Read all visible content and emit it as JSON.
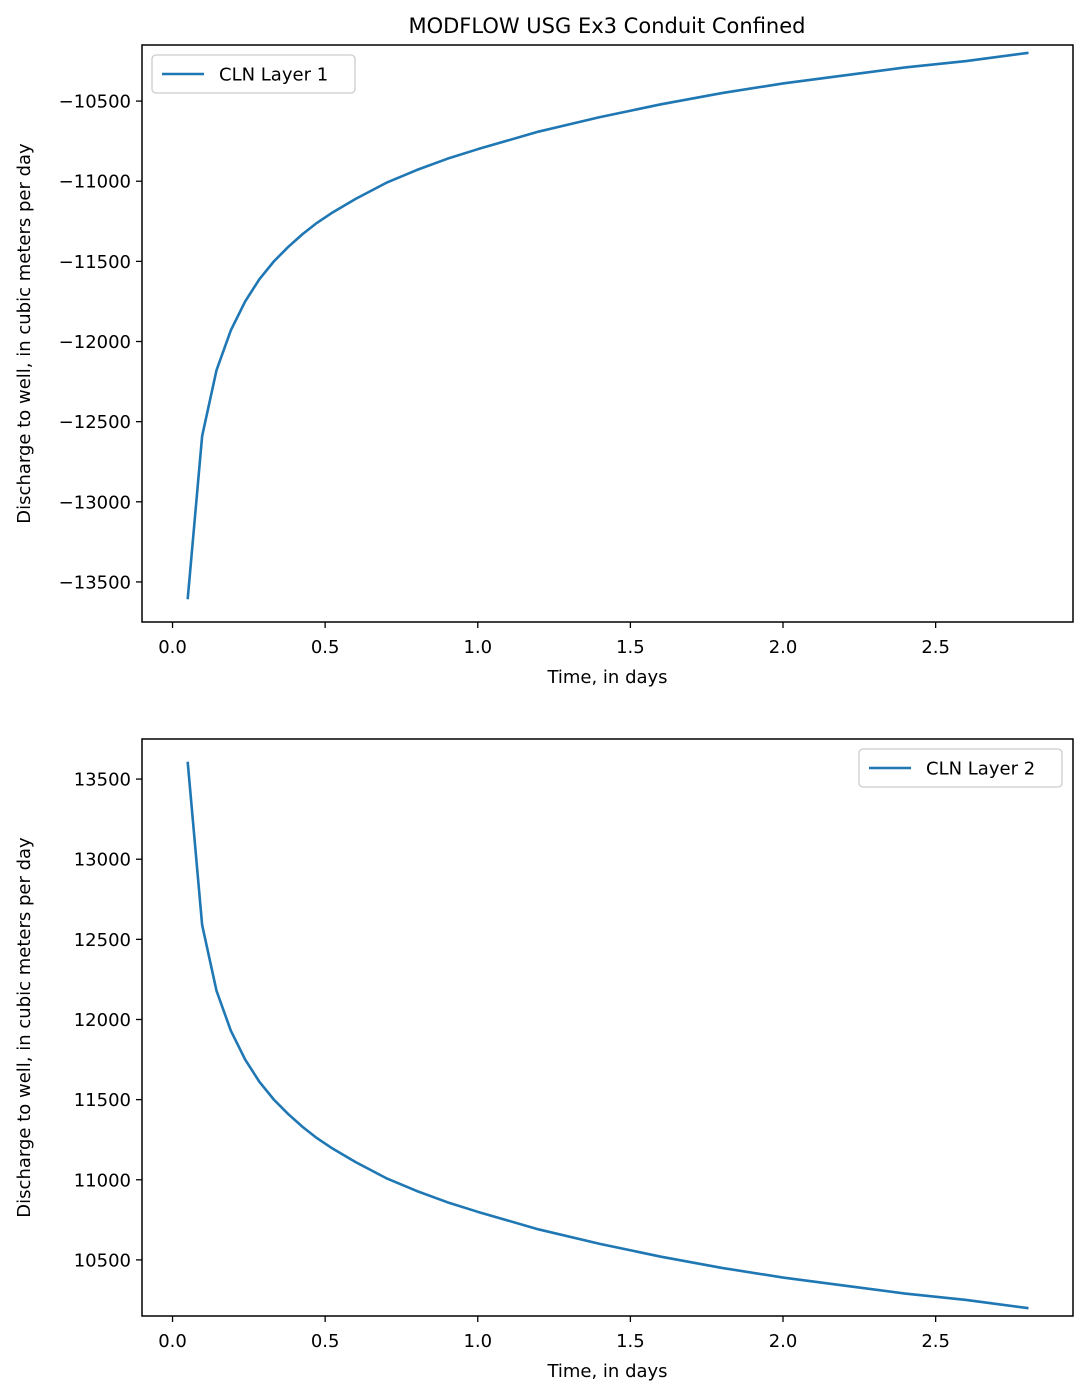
{
  "figure": {
    "title": "MODFLOW USG Ex3 Conduit Confined"
  },
  "chart_data": [
    {
      "type": "line",
      "title": "MODFLOW USG Ex3 Conduit Confined",
      "xlabel": "Time, in days",
      "ylabel": "Discharge to well, in cubic meters per day",
      "xlim": [
        -0.1,
        2.95
      ],
      "ylim": [
        -13750,
        -10150
      ],
      "xticks": [
        0.0,
        0.5,
        1.0,
        1.5,
        2.0,
        2.5
      ],
      "xtick_labels": [
        "0.0",
        "0.5",
        "1.0",
        "1.5",
        "2.0",
        "2.5"
      ],
      "yticks": [
        -13500,
        -13000,
        -12500,
        -12000,
        -11500,
        -11000,
        -10500
      ],
      "ytick_labels": [
        "−13500",
        "−13000",
        "−12500",
        "−12000",
        "−11500",
        "−11000",
        "−10500"
      ],
      "grid": false,
      "legend_position": "upper-left",
      "series": [
        {
          "name": "CLN Layer 1",
          "color": "#1f77b4",
          "x": [
            0.05,
            0.097,
            0.144,
            0.191,
            0.238,
            0.285,
            0.332,
            0.379,
            0.426,
            0.473,
            0.52,
            0.6,
            0.7,
            0.8,
            0.9,
            1.0,
            1.2,
            1.4,
            1.6,
            1.8,
            2.0,
            2.2,
            2.4,
            2.6,
            2.8
          ],
          "y": [
            -13600,
            -12590,
            -12180,
            -11930,
            -11750,
            -11610,
            -11500,
            -11410,
            -11330,
            -11260,
            -11200,
            -11110,
            -11010,
            -10930,
            -10860,
            -10800,
            -10690,
            -10600,
            -10520,
            -10450,
            -10390,
            -10340,
            -10290,
            -10250,
            -10200
          ]
        }
      ]
    },
    {
      "type": "line",
      "title": "",
      "xlabel": "Time, in days",
      "ylabel": "Discharge to well, in cubic meters per day",
      "xlim": [
        -0.1,
        2.95
      ],
      "ylim": [
        10150,
        13750
      ],
      "xticks": [
        0.0,
        0.5,
        1.0,
        1.5,
        2.0,
        2.5
      ],
      "xtick_labels": [
        "0.0",
        "0.5",
        "1.0",
        "1.5",
        "2.0",
        "2.5"
      ],
      "yticks": [
        10500,
        11000,
        11500,
        12000,
        12500,
        13000,
        13500
      ],
      "ytick_labels": [
        "10500",
        "11000",
        "11500",
        "12000",
        "12500",
        "13000",
        "13500"
      ],
      "grid": false,
      "legend_position": "upper-right",
      "series": [
        {
          "name": "CLN Layer 2",
          "color": "#1f77b4",
          "x": [
            0.05,
            0.097,
            0.144,
            0.191,
            0.238,
            0.285,
            0.332,
            0.379,
            0.426,
            0.473,
            0.52,
            0.6,
            0.7,
            0.8,
            0.9,
            1.0,
            1.2,
            1.4,
            1.6,
            1.8,
            2.0,
            2.2,
            2.4,
            2.6,
            2.8
          ],
          "y": [
            13600,
            12590,
            12180,
            11930,
            11750,
            11610,
            11500,
            11410,
            11330,
            11260,
            11200,
            11110,
            11010,
            10930,
            10860,
            10800,
            10690,
            10600,
            10520,
            10450,
            10390,
            10340,
            10290,
            10250,
            10200
          ]
        }
      ]
    }
  ]
}
